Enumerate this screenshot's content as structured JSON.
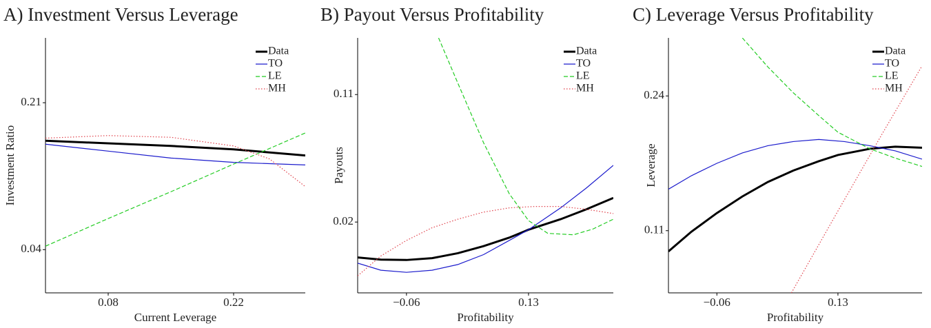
{
  "chart_data": [
    {
      "type": "line",
      "title": "A) Investment Versus Leverage",
      "xlabel": "Current Leverage",
      "ylabel": "Investment Ratio",
      "xlim": [
        0.01,
        0.3
      ],
      "ylim": [
        -0.01,
        0.285
      ],
      "xticks": [
        0.08,
        0.22
      ],
      "yticks": [
        0.04,
        0.21
      ],
      "legend": "upper right",
      "series": [
        {
          "name": "Data",
          "color": "#000000",
          "linestyle": "solid",
          "linewidth": 3,
          "x": [
            0.01,
            0.08,
            0.15,
            0.22,
            0.3
          ],
          "values": [
            0.166,
            0.163,
            0.16,
            0.156,
            0.149
          ]
        },
        {
          "name": "TO",
          "color": "#1a1acc",
          "linestyle": "solid",
          "linewidth": 1.2,
          "x": [
            0.01,
            0.08,
            0.15,
            0.22,
            0.3
          ],
          "values": [
            0.162,
            0.154,
            0.146,
            0.141,
            0.138
          ]
        },
        {
          "name": "LE",
          "color": "#22cc22",
          "linestyle": "dashed",
          "linewidth": 1.2,
          "x": [
            0.01,
            0.08,
            0.15,
            0.22,
            0.3
          ],
          "values": [
            0.044,
            0.076,
            0.107,
            0.139,
            0.175
          ]
        },
        {
          "name": "MH",
          "color": "#e0404a",
          "linestyle": "dotted",
          "linewidth": 1.2,
          "x": [
            0.01,
            0.08,
            0.15,
            0.22,
            0.26,
            0.3
          ],
          "values": [
            0.169,
            0.172,
            0.17,
            0.16,
            0.145,
            0.113
          ]
        }
      ]
    },
    {
      "type": "line",
      "title": "B) Payout Versus Profitability",
      "xlabel": "Profitability",
      "ylabel": "Payouts",
      "xlim": [
        -0.136,
        0.262
      ],
      "ylim": [
        -0.03,
        0.15
      ],
      "xticks": [
        {
          "value": -0.06,
          "label": "−0.06"
        },
        0.13
      ],
      "yticks": [
        0.02,
        0.11
      ],
      "legend": "upper right",
      "series": [
        {
          "name": "Data",
          "color": "#000000",
          "linestyle": "solid",
          "linewidth": 3,
          "x": [
            -0.136,
            -0.1,
            -0.06,
            -0.02,
            0.02,
            0.06,
            0.1,
            0.13,
            0.18,
            0.22,
            0.262
          ],
          "values": [
            -0.005,
            -0.0065,
            -0.0068,
            -0.0055,
            -0.002,
            0.003,
            0.009,
            0.0146,
            0.022,
            0.029,
            0.037
          ]
        },
        {
          "name": "TO",
          "color": "#1a1acc",
          "linestyle": "solid",
          "linewidth": 1.2,
          "x": [
            -0.136,
            -0.1,
            -0.06,
            -0.02,
            0.02,
            0.06,
            0.1,
            0.13,
            0.18,
            0.22,
            0.262
          ],
          "values": [
            -0.009,
            -0.014,
            -0.0155,
            -0.014,
            -0.01,
            -0.003,
            0.007,
            0.0146,
            0.03,
            0.044,
            0.06
          ]
        },
        {
          "name": "LE",
          "color": "#22cc22",
          "linestyle": "dashed",
          "linewidth": 1.2,
          "x": [
            -0.01,
            0.02,
            0.06,
            0.1,
            0.13,
            0.16,
            0.2,
            0.23,
            0.262
          ],
          "values": [
            0.15,
            0.118,
            0.076,
            0.04,
            0.021,
            0.012,
            0.011,
            0.015,
            0.022
          ]
        },
        {
          "name": "MH",
          "color": "#e0404a",
          "linestyle": "dotted",
          "linewidth": 1.2,
          "x": [
            -0.136,
            -0.1,
            -0.06,
            -0.02,
            0.02,
            0.06,
            0.1,
            0.14,
            0.18,
            0.22,
            0.262
          ],
          "values": [
            -0.018,
            -0.004,
            0.007,
            0.016,
            0.022,
            0.027,
            0.03,
            0.031,
            0.031,
            0.029,
            0.026
          ]
        }
      ]
    },
    {
      "type": "line",
      "title": "C) Leverage Versus Profitability",
      "xlabel": "Profitability",
      "ylabel": "Leverage",
      "xlim": [
        -0.136,
        0.262
      ],
      "ylim": [
        0.05,
        0.296
      ],
      "xticks": [
        {
          "value": -0.06,
          "label": "−0.06"
        },
        0.13
      ],
      "yticks": [
        0.11,
        0.24
      ],
      "legend": "upper right",
      "series": [
        {
          "name": "Data",
          "color": "#000000",
          "linestyle": "solid",
          "linewidth": 3,
          "x": [
            -0.136,
            -0.1,
            -0.06,
            -0.02,
            0.02,
            0.06,
            0.1,
            0.13,
            0.18,
            0.22,
            0.262
          ],
          "values": [
            0.09,
            0.109,
            0.127,
            0.143,
            0.157,
            0.168,
            0.177,
            0.183,
            0.189,
            0.191,
            0.19
          ]
        },
        {
          "name": "TO",
          "color": "#1a1acc",
          "linestyle": "solid",
          "linewidth": 1.2,
          "x": [
            -0.136,
            -0.1,
            -0.06,
            -0.02,
            0.02,
            0.06,
            0.1,
            0.14,
            0.18,
            0.22,
            0.262
          ],
          "values": [
            0.15,
            0.163,
            0.175,
            0.185,
            0.192,
            0.196,
            0.198,
            0.196,
            0.192,
            0.187,
            0.179
          ]
        },
        {
          "name": "LE",
          "color": "#22cc22",
          "linestyle": "dashed",
          "linewidth": 1.2,
          "x": [
            -0.02,
            0.02,
            0.06,
            0.1,
            0.13,
            0.18,
            0.22,
            0.262
          ],
          "values": [
            0.296,
            0.268,
            0.243,
            0.221,
            0.205,
            0.189,
            0.18,
            0.172
          ]
        },
        {
          "name": "MH",
          "color": "#e0404a",
          "linestyle": "dotted",
          "linewidth": 1.2,
          "x": [
            0.057,
            0.13,
            0.2,
            0.262
          ],
          "values": [
            0.05,
            0.129,
            0.204,
            0.269
          ]
        }
      ]
    }
  ]
}
